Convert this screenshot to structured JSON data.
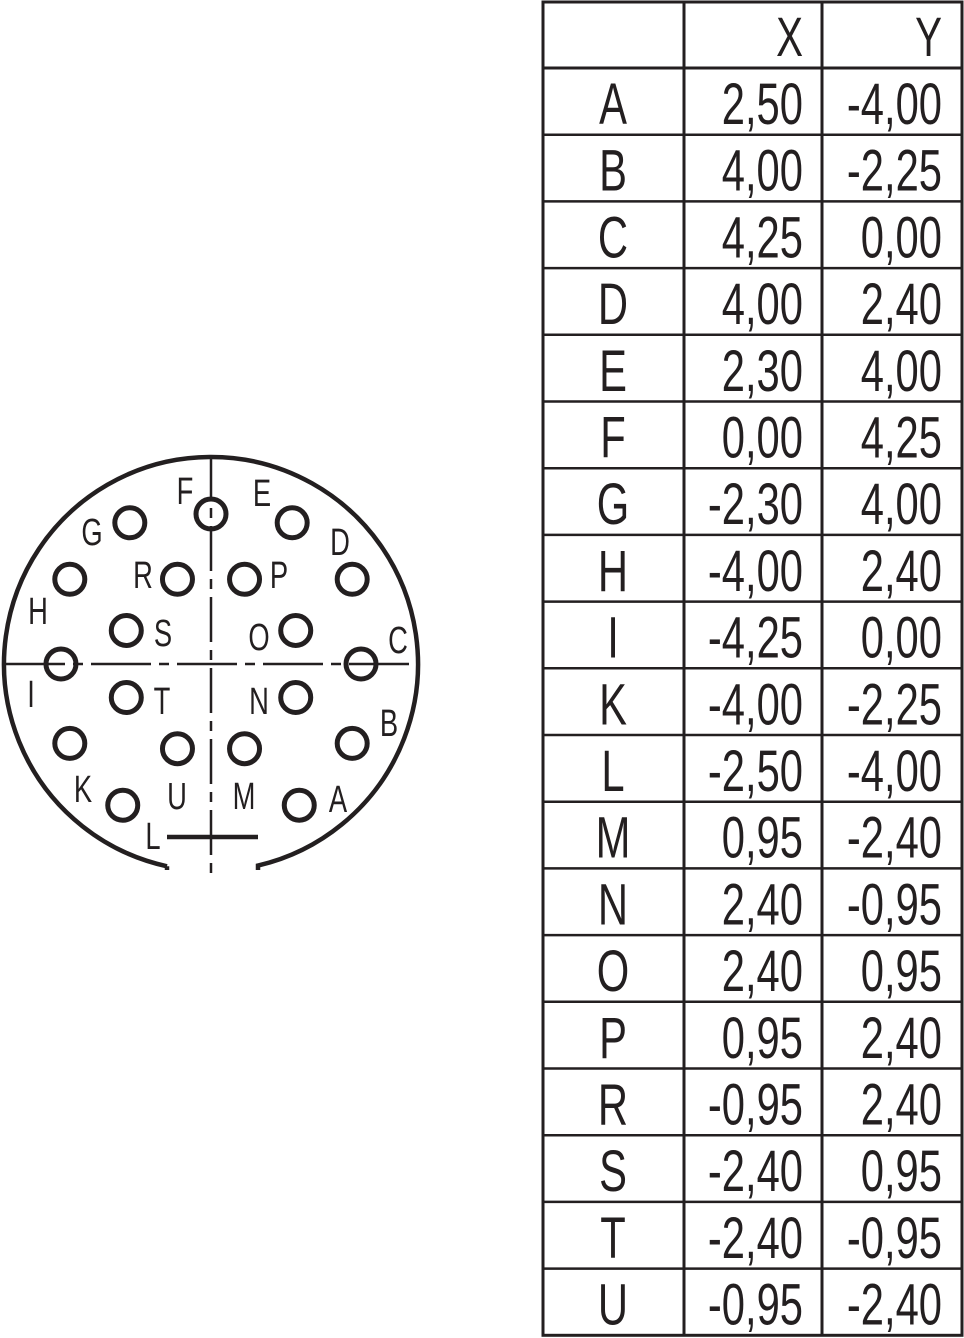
{
  "colors": {
    "ink": "#231f20",
    "background": "#ffffff"
  },
  "table": {
    "headers": [
      "",
      "X",
      "Y"
    ],
    "rows": [
      {
        "pin": "A",
        "x": "2,50",
        "y": "-4,00"
      },
      {
        "pin": "B",
        "x": "4,00",
        "y": "-2,25"
      },
      {
        "pin": "C",
        "x": "4,25",
        "y": "0,00"
      },
      {
        "pin": "D",
        "x": "4,00",
        "y": "2,40"
      },
      {
        "pin": "E",
        "x": "2,30",
        "y": "4,00"
      },
      {
        "pin": "F",
        "x": "0,00",
        "y": "4,25"
      },
      {
        "pin": "G",
        "x": "-2,30",
        "y": "4,00"
      },
      {
        "pin": "H",
        "x": "-4,00",
        "y": "2,40"
      },
      {
        "pin": "I",
        "x": "-4,25",
        "y": "0,00"
      },
      {
        "pin": "K",
        "x": "-4,00",
        "y": "-2,25"
      },
      {
        "pin": "L",
        "x": "-2,50",
        "y": "-4,00"
      },
      {
        "pin": "M",
        "x": "0,95",
        "y": "-2,40"
      },
      {
        "pin": "N",
        "x": "2,40",
        "y": "-0,95"
      },
      {
        "pin": "O",
        "x": "2,40",
        "y": "0,95"
      },
      {
        "pin": "P",
        "x": "0,95",
        "y": "2,40"
      },
      {
        "pin": "R",
        "x": "-0,95",
        "y": "2,40"
      },
      {
        "pin": "S",
        "x": "-2,40",
        "y": "0,95"
      },
      {
        "pin": "T",
        "x": "-2,40",
        "y": "-0,95"
      },
      {
        "pin": "U",
        "x": "-0,95",
        "y": "-2,40"
      }
    ]
  }
}
